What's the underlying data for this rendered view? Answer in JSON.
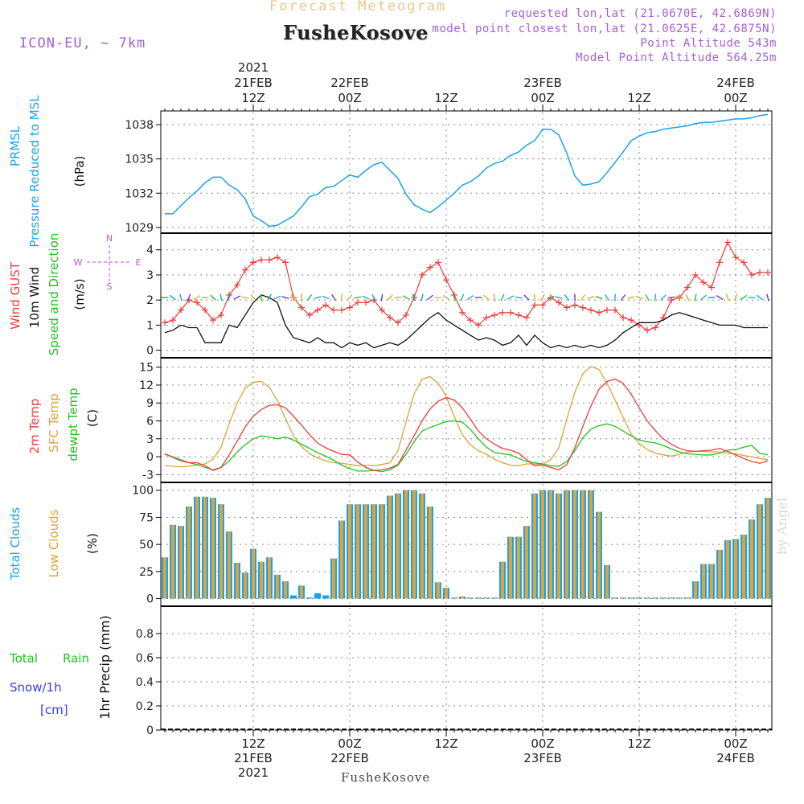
{
  "header": {
    "title": "Forecast Meteogram",
    "location": "FusheKosove",
    "model": "ICON-EU, ~ 7km",
    "requested": "requested lon,lat (21.0670E, 42.6869N)",
    "closest": "model point closest lon,lat (21.0625E, 42.6875N)",
    "altitude": "Point Altitude 543m",
    "model_altitude": "Model Point Altitude 564.25m",
    "watermark": "by Angel",
    "footer_location": "FusheKosove"
  },
  "time_axis": {
    "year_label": "2021",
    "ticks": [
      {
        "hour": 12,
        "top": [
          "21FEB",
          "12Z"
        ],
        "bottom": [
          "12Z",
          "21FEB",
          "2021"
        ]
      },
      {
        "hour": 24,
        "top": [
          "22FEB",
          "00Z"
        ],
        "bottom": [
          "00Z",
          "22FEB"
        ]
      },
      {
        "hour": 36,
        "top": [
          "12Z"
        ],
        "bottom": [
          "12Z"
        ]
      },
      {
        "hour": 48,
        "top": [
          "23FEB",
          "00Z"
        ],
        "bottom": [
          "00Z",
          "23FEB"
        ]
      },
      {
        "hour": 60,
        "top": [
          "12Z"
        ],
        "bottom": [
          "12Z"
        ]
      },
      {
        "hour": 72,
        "top": [
          "24FEB",
          "00Z"
        ],
        "bottom": [
          "00Z",
          "24FEB"
        ]
      }
    ],
    "range_hours": [
      1,
      76
    ]
  },
  "colors": {
    "pressure": "#1aa3e8",
    "gust": "#ee3b3b",
    "wind": "#111111",
    "temp2m": "#ee3b3b",
    "sfc_temp": "#e0a23a",
    "dewpt": "#22c322",
    "total_clouds": "#1aa3e8",
    "low_clouds": "#e0a23a",
    "rain": "#22c322",
    "snow": "#3a3aee",
    "direction_label": "#b855d6"
  },
  "labels": {
    "pressure": [
      "PRMSL",
      "Pressure Reduced to MSL"
    ],
    "pressure_unit": "(hPa)",
    "wind": [
      "Wind GUST",
      "10m Wind",
      "Speed and Direction"
    ],
    "wind_unit": "(m/s)",
    "compass": {
      "n": "N",
      "s": "S",
      "e": "E",
      "w": "W"
    },
    "temp": [
      "2m Temp",
      "SFC Temp",
      "dewpt Temp"
    ],
    "temp_unit": "(C)",
    "clouds": [
      "Total Clouds",
      "Low Clouds"
    ],
    "clouds_unit": "(%)",
    "precip": [
      "Total",
      "Rain",
      "Snow/1h",
      "[cm]"
    ],
    "precip_axis": "1hr Precip (mm)"
  },
  "chart_data": [
    {
      "type": "line",
      "title": "PRMSL Pressure Reduced to MSL",
      "ylabel": "(hPa)",
      "ylim": [
        1028.5,
        1039.2
      ],
      "yticks": [
        1029,
        1032,
        1035,
        1038
      ],
      "grid": true,
      "x_hours": [
        1,
        2,
        3,
        4,
        5,
        6,
        7,
        8,
        9,
        10,
        11,
        12,
        13,
        14,
        15,
        16,
        17,
        18,
        19,
        20,
        21,
        22,
        23,
        24,
        25,
        26,
        27,
        28,
        29,
        30,
        31,
        32,
        33,
        34,
        35,
        36,
        37,
        38,
        39,
        40,
        41,
        42,
        43,
        44,
        45,
        46,
        47,
        48,
        49,
        50,
        51,
        52,
        53,
        54,
        55,
        56,
        57,
        58,
        59,
        60,
        61,
        62,
        63,
        64,
        65,
        66,
        67,
        68,
        69,
        70,
        71,
        72,
        73,
        74,
        75,
        76
      ],
      "series": [
        {
          "name": "PRMSL",
          "values": [
            1030.2,
            1030.2,
            1030.9,
            1031.6,
            1032.2,
            1032.9,
            1033.4,
            1033.4,
            1032.7,
            1032.3,
            1031.5,
            1030.0,
            1029.6,
            1029.1,
            1029.2,
            1029.6,
            1030.0,
            1030.8,
            1031.7,
            1031.9,
            1032.5,
            1032.6,
            1033.1,
            1033.6,
            1033.4,
            1034.0,
            1034.5,
            1034.7,
            1034.0,
            1033.3,
            1031.9,
            1031.0,
            1030.6,
            1030.3,
            1030.8,
            1031.4,
            1032.0,
            1032.7,
            1033.0,
            1033.5,
            1034.2,
            1034.6,
            1034.8,
            1035.3,
            1035.6,
            1036.2,
            1036.6,
            1037.6,
            1037.6,
            1037.1,
            1035.5,
            1033.5,
            1032.7,
            1032.8,
            1033.0,
            1033.8,
            1034.7,
            1035.6,
            1036.6,
            1037.0,
            1037.3,
            1037.4,
            1037.6,
            1037.7,
            1037.8,
            1037.9,
            1038.1,
            1038.2,
            1038.2,
            1038.3,
            1038.4,
            1038.5,
            1038.5,
            1038.6,
            1038.8,
            1038.9
          ]
        }
      ]
    },
    {
      "type": "line",
      "title": "Wind GUST, 10m Wind Speed and Direction",
      "ylabel": "(m/s)",
      "ylim": [
        -0.3,
        4.6
      ],
      "yticks": [
        0,
        1,
        2,
        3,
        4
      ],
      "grid": true,
      "x_hours": [
        1,
        2,
        3,
        4,
        5,
        6,
        7,
        8,
        9,
        10,
        11,
        12,
        13,
        14,
        15,
        16,
        17,
        18,
        19,
        20,
        21,
        22,
        23,
        24,
        25,
        26,
        27,
        28,
        29,
        30,
        31,
        32,
        33,
        34,
        35,
        36,
        37,
        38,
        39,
        40,
        41,
        42,
        43,
        44,
        45,
        46,
        47,
        48,
        49,
        50,
        51,
        52,
        53,
        54,
        55,
        56,
        57,
        58,
        59,
        60,
        61,
        62,
        63,
        64,
        65,
        66,
        67,
        68,
        69,
        70,
        71,
        72,
        73,
        74,
        75,
        76
      ],
      "series": [
        {
          "name": "Wind GUST",
          "values": [
            1.1,
            1.2,
            1.6,
            2.0,
            1.9,
            1.6,
            1.2,
            1.4,
            2.2,
            2.6,
            3.2,
            3.5,
            3.6,
            3.6,
            3.7,
            3.5,
            2.1,
            1.7,
            1.4,
            1.6,
            1.8,
            1.6,
            1.6,
            1.7,
            1.9,
            1.9,
            2.0,
            1.6,
            1.3,
            1.1,
            1.4,
            2.1,
            3.0,
            3.3,
            3.5,
            2.8,
            2.2,
            1.5,
            1.2,
            1.0,
            1.3,
            1.4,
            1.5,
            1.5,
            1.4,
            1.3,
            1.8,
            1.8,
            2.1,
            1.9,
            1.7,
            1.8,
            1.7,
            1.6,
            1.5,
            1.6,
            1.6,
            1.3,
            1.2,
            1.0,
            0.8,
            0.9,
            1.3,
            2.0,
            2.1,
            2.5,
            3.0,
            2.7,
            2.5,
            3.5,
            4.3,
            3.7,
            3.5,
            3.0,
            3.1,
            3.1
          ]
        },
        {
          "name": "10m Wind",
          "values": [
            0.7,
            0.8,
            1.0,
            0.9,
            0.9,
            0.3,
            0.3,
            0.3,
            1.0,
            0.9,
            1.4,
            1.9,
            2.2,
            2.1,
            1.9,
            1.0,
            0.5,
            0.4,
            0.3,
            0.5,
            0.3,
            0.3,
            0.1,
            0.3,
            0.2,
            0.3,
            0.1,
            0.2,
            0.3,
            0.2,
            0.4,
            0.7,
            1.0,
            1.3,
            1.5,
            1.2,
            1.0,
            0.8,
            0.6,
            0.4,
            0.5,
            0.4,
            0.2,
            0.3,
            0.6,
            0.2,
            0.6,
            0.3,
            0.1,
            0.2,
            0.1,
            0.2,
            0.1,
            0.2,
            0.1,
            0.2,
            0.4,
            0.7,
            0.9,
            1.1,
            1.1,
            1.1,
            1.2,
            1.4,
            1.5,
            1.4,
            1.3,
            1.2,
            1.1,
            1.0,
            1.0,
            1.0,
            0.9,
            0.9,
            0.9,
            0.9
          ]
        }
      ],
      "direction_arrows": "coloured arrows at 2 m/s (and along the wind curve at strong winds) show 10m wind direction"
    },
    {
      "type": "line",
      "title": "2m Temp, SFC Temp, dewpt Temp",
      "ylabel": "(C)",
      "ylim": [
        -4.3,
        16.3
      ],
      "yticks": [
        -3,
        0,
        3,
        6,
        9,
        12,
        15
      ],
      "grid": true,
      "x_hours": [
        1,
        2,
        3,
        4,
        5,
        6,
        7,
        8,
        9,
        10,
        11,
        12,
        13,
        14,
        15,
        16,
        17,
        18,
        19,
        20,
        21,
        22,
        23,
        24,
        25,
        26,
        27,
        28,
        29,
        30,
        31,
        32,
        33,
        34,
        35,
        36,
        37,
        38,
        39,
        40,
        41,
        42,
        43,
        44,
        45,
        46,
        47,
        48,
        49,
        50,
        51,
        52,
        53,
        54,
        55,
        56,
        57,
        58,
        59,
        60,
        61,
        62,
        63,
        64,
        65,
        66,
        67,
        68,
        69,
        70,
        71,
        72,
        73,
        74,
        75,
        76
      ],
      "series": [
        {
          "name": "2m Temp",
          "values": [
            0.5,
            -0.1,
            -0.7,
            -1.0,
            -1.0,
            -1.5,
            -2.3,
            -1.8,
            0.3,
            2.6,
            5.0,
            6.8,
            7.9,
            8.6,
            8.7,
            8.2,
            6.8,
            5.3,
            3.7,
            2.3,
            1.5,
            0.9,
            0.4,
            0.3,
            -0.9,
            -1.8,
            -2.3,
            -2.2,
            -1.9,
            -1.3,
            1.1,
            3.5,
            6.0,
            8.0,
            9.3,
            9.9,
            9.5,
            8.2,
            6.3,
            4.3,
            3.0,
            2.1,
            1.4,
            1.1,
            0.6,
            -0.5,
            -1.5,
            -1.4,
            -1.8,
            -2.2,
            -1.3,
            1.5,
            5.1,
            8.5,
            11.3,
            12.6,
            13.0,
            12.3,
            10.5,
            8.2,
            6.0,
            4.4,
            3.0,
            2.1,
            1.4,
            1.0,
            0.9,
            1.0,
            1.1,
            1.4,
            0.9,
            0.3,
            -0.3,
            -0.8,
            -1.1,
            -0.7
          ]
        },
        {
          "name": "SFC Temp",
          "values": [
            -1.5,
            -1.6,
            -1.7,
            -1.6,
            -1.4,
            -1.2,
            -0.4,
            1.6,
            5.5,
            9.0,
            11.5,
            12.5,
            12.6,
            11.6,
            9.4,
            6.4,
            3.5,
            1.7,
            0.5,
            -0.2,
            -0.7,
            -1.0,
            -1.1,
            -1.3,
            -1.5,
            -1.4,
            -1.5,
            -1.3,
            -1.0,
            1.0,
            5.8,
            10.5,
            13.0,
            13.4,
            12.3,
            10.1,
            6.7,
            3.7,
            2.0,
            1.0,
            0.4,
            -0.4,
            -1.0,
            -1.4,
            -1.5,
            -1.2,
            -1.2,
            -1.3,
            -0.5,
            1.5,
            6.3,
            10.8,
            13.9,
            15.1,
            14.6,
            12.3,
            9.5,
            6.6,
            3.8,
            2.2,
            1.2,
            0.6,
            0.3,
            0.1,
            0.4,
            0.8,
            0.9,
            0.9,
            0.8,
            0.8,
            0.6,
            0.5,
            0.2,
            0.0,
            -0.3,
            -0.5
          ]
        },
        {
          "name": "dewpt Temp",
          "values": [
            0.4,
            0.0,
            -0.5,
            -1.0,
            -1.3,
            -1.8,
            -2.2,
            -1.8,
            -0.7,
            0.8,
            2.0,
            3.0,
            3.5,
            3.3,
            3.0,
            3.3,
            2.8,
            2.1,
            1.4,
            0.7,
            0.1,
            -0.6,
            -1.4,
            -2.0,
            -2.4,
            -2.4,
            -2.3,
            -2.5,
            -2.2,
            -1.4,
            0.4,
            2.5,
            4.3,
            4.9,
            5.4,
            5.9,
            6.0,
            5.8,
            4.6,
            3.0,
            1.6,
            0.7,
            0.5,
            0.3,
            -0.3,
            -0.8,
            -1.0,
            -1.2,
            -1.5,
            -1.6,
            -0.8,
            1.0,
            3.2,
            4.6,
            5.2,
            5.5,
            5.1,
            4.3,
            3.5,
            2.8,
            2.5,
            2.3,
            1.9,
            1.3,
            0.8,
            0.5,
            0.4,
            0.3,
            0.3,
            0.6,
            1.1,
            1.2,
            1.6,
            1.9,
            0.6,
            0.3
          ]
        }
      ]
    },
    {
      "type": "bar",
      "title": "Total Clouds, Low Clouds",
      "ylabel": "(%)",
      "ylim": [
        -7,
        105
      ],
      "yticks": [
        0,
        25,
        50,
        75,
        100
      ],
      "grid": true,
      "x_hours": [
        1,
        2,
        3,
        4,
        5,
        6,
        7,
        8,
        9,
        10,
        11,
        12,
        13,
        14,
        15,
        16,
        17,
        18,
        19,
        20,
        21,
        22,
        23,
        24,
        25,
        26,
        27,
        28,
        29,
        30,
        31,
        32,
        33,
        34,
        35,
        36,
        37,
        38,
        39,
        40,
        41,
        42,
        43,
        44,
        45,
        46,
        47,
        48,
        49,
        50,
        51,
        52,
        53,
        54,
        55,
        56,
        57,
        58,
        59,
        60,
        61,
        62,
        63,
        64,
        65,
        66,
        67,
        68,
        69,
        70,
        71,
        72,
        73,
        74,
        75,
        76
      ],
      "series": [
        {
          "name": "Total Clouds",
          "values": [
            38,
            68,
            67,
            85,
            94,
            94,
            93,
            87,
            62,
            33,
            24,
            46,
            34,
            38,
            22,
            16,
            3,
            12,
            1,
            5,
            3,
            37,
            72,
            87,
            87,
            87,
            87,
            87,
            95,
            97,
            100,
            100,
            97,
            85,
            15,
            10,
            1,
            2,
            1,
            1,
            1,
            1,
            34,
            57,
            57,
            67,
            97,
            100,
            100,
            97,
            100,
            100,
            100,
            100,
            80,
            31,
            1,
            1,
            1,
            1,
            1,
            1,
            1,
            1,
            1,
            1,
            16,
            32,
            32,
            45,
            54,
            55,
            59,
            73,
            87,
            93
          ]
        },
        {
          "name": "Low Clouds",
          "values": [
            38,
            68,
            67,
            85,
            94,
            94,
            93,
            87,
            62,
            33,
            24,
            46,
            34,
            38,
            22,
            16,
            0,
            12,
            0,
            0,
            0,
            37,
            72,
            87,
            87,
            87,
            87,
            87,
            95,
            97,
            100,
            100,
            97,
            85,
            15,
            10,
            1,
            2,
            1,
            1,
            1,
            1,
            34,
            57,
            57,
            67,
            97,
            100,
            100,
            97,
            100,
            100,
            100,
            100,
            80,
            31,
            1,
            1,
            1,
            1,
            1,
            1,
            1,
            1,
            1,
            1,
            16,
            32,
            32,
            45,
            54,
            55,
            59,
            73,
            87,
            93
          ]
        }
      ]
    },
    {
      "type": "bar",
      "title": "1hr Precip (mm)",
      "ylabel": "1hr Precip (mm)",
      "ylim": [
        0,
        1.0
      ],
      "yticks": [
        0,
        0.2,
        0.4,
        0.6,
        0.8
      ],
      "grid": true,
      "series": [
        {
          "name": "Total",
          "values": []
        },
        {
          "name": "Rain",
          "values": []
        },
        {
          "name": "Snow/1h",
          "values": []
        }
      ]
    }
  ]
}
